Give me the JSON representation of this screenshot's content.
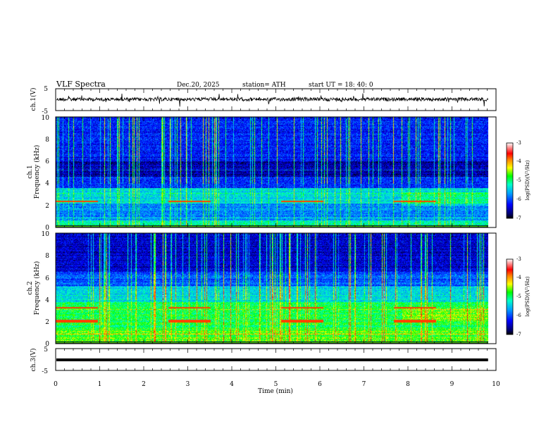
{
  "header": {
    "title": "VLF  Spectra",
    "date": "Dec.20, 2025",
    "station": "station= ATH",
    "start": "start  UT  =   18: 40: 0"
  },
  "chart_data": [
    {
      "type": "line",
      "panel": "ch1-waveform",
      "ylabel": "ch.1(V)",
      "ylim": [
        -5,
        5
      ],
      "y_ticks": [
        "5",
        "-5"
      ],
      "xlim": [
        0,
        10
      ]
    },
    {
      "type": "heatmap",
      "panel": "ch1-spectrogram",
      "ylabel": "ch.1\nFrequency  (kHz)",
      "ylim": [
        0,
        10
      ],
      "y_ticks": [
        "0",
        "2",
        "4",
        "6",
        "8",
        "10"
      ],
      "xlim": [
        0,
        10
      ],
      "data_end_min": 9.82,
      "colorbar": {
        "label": "log(PSD)(V²/Hz)",
        "range": [
          -7,
          -3
        ],
        "ticks": [
          "-3",
          "-4",
          "-5",
          "-6",
          "-7"
        ]
      }
    },
    {
      "type": "heatmap",
      "panel": "ch2-spectrogram",
      "ylabel": "ch.2\nFrequency  (kHz)",
      "ylim": [
        0,
        10
      ],
      "y_ticks": [
        "0",
        "2",
        "4",
        "6",
        "8",
        "10"
      ],
      "xlim": [
        0,
        10
      ],
      "data_end_min": 9.82,
      "colorbar": {
        "label": "log(PSD)(V²/Hz)",
        "range": [
          -7,
          -3
        ],
        "ticks": [
          "-3",
          "-4",
          "-5",
          "-6",
          "-7"
        ]
      }
    },
    {
      "type": "line",
      "panel": "ch3-waveform",
      "ylabel": "ch.3(V)",
      "ylim": [
        -5,
        5
      ],
      "y_ticks": [
        "5",
        "-5"
      ],
      "xlim": [
        0,
        10
      ],
      "x_ticks": [
        "0",
        "1",
        "2",
        "3",
        "4",
        "5",
        "6",
        "7",
        "8",
        "9",
        "10"
      ],
      "xlabel": "Time  (min)"
    }
  ]
}
